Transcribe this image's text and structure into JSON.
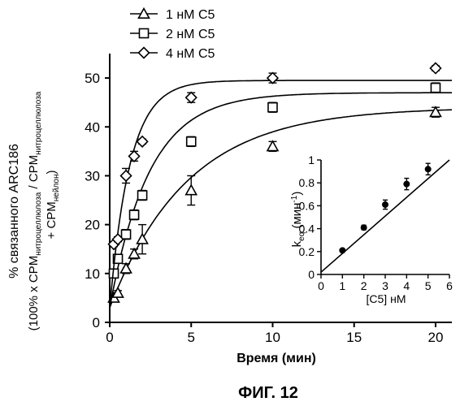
{
  "figure_label": "ФИГ. 12",
  "chart_data": [
    {
      "type": "scatter",
      "xlabel": "Время (мин)",
      "ylabel_line1": "% связанного ARC186",
      "ylabel_line2_parts": [
        "(100% x CPM",
        "нитроцеллюлоза",
        " / CPM",
        "нитроцеллюлоза"
      ],
      "ylabel_line3_parts": [
        "+ CPM",
        "нейлон",
        ")"
      ],
      "xlim": [
        0,
        21
      ],
      "ylim": [
        0,
        55
      ],
      "xticks": [
        0,
        5,
        10,
        15,
        20
      ],
      "yticks": [
        0,
        10,
        20,
        30,
        40,
        50
      ],
      "grid": false,
      "legend_position": "top-left",
      "series": [
        {
          "name": "1 нМ С5",
          "marker": "triangle",
          "x": [
            0.25,
            0.5,
            1.0,
            1.5,
            2.0,
            5.0,
            10.0,
            20.0
          ],
          "y": [
            5,
            6,
            11,
            14,
            17,
            27,
            36,
            43
          ],
          "err": [
            0.5,
            0.5,
            1,
            1,
            3,
            3,
            1,
            1
          ],
          "fit": {
            "plateau": 44,
            "k": 0.21,
            "y0": 3
          }
        },
        {
          "name": "2 нМ С5",
          "marker": "square",
          "x": [
            0.25,
            0.5,
            1.0,
            1.5,
            2.0,
            5.0,
            10.0,
            20.0
          ],
          "y": [
            10,
            13,
            18,
            22,
            26,
            37,
            44,
            48
          ],
          "err": [
            0.5,
            0.5,
            1,
            1,
            1,
            1,
            1,
            1
          ],
          "fit": {
            "plateau": 47,
            "k": 0.41,
            "y0": 3
          }
        },
        {
          "name": "4 нМ С5",
          "marker": "diamond",
          "x": [
            0.25,
            0.5,
            1.0,
            1.5,
            2.0,
            5.0,
            10.0,
            20.0
          ],
          "y": [
            16,
            17,
            30,
            34,
            37,
            46,
            50,
            52
          ],
          "err": [
            0.5,
            0.5,
            1.5,
            1,
            0.5,
            1,
            1,
            0.5
          ],
          "fit": {
            "plateau": 49.5,
            "k": 0.8,
            "y0": 3
          }
        }
      ]
    },
    {
      "type": "scatter",
      "xlabel": "[C5] нМ",
      "ylabel_main": "k",
      "ylabel_sub": "eq",
      "ylabel_unit": "(мин",
      "ylabel_sup": "-1",
      "ylabel_close": ")",
      "xlim": [
        0,
        6
      ],
      "ylim": [
        0,
        1
      ],
      "xticks": [
        0,
        1,
        2,
        3,
        4,
        5,
        6
      ],
      "yticks": [
        "0",
        "0.2",
        "0.4",
        "0.6",
        "0.8",
        "1"
      ],
      "ytick_values": [
        0,
        0.2,
        0.4,
        0.6,
        0.8,
        1
      ],
      "grid": false,
      "series": [
        {
          "marker": "filled-circle",
          "x": [
            1,
            2,
            3,
            4,
            5
          ],
          "y": [
            0.21,
            0.41,
            0.61,
            0.79,
            0.92
          ],
          "err": [
            0.01,
            0.02,
            0.04,
            0.05,
            0.05
          ],
          "fit": {
            "slope": 0.2,
            "intercept": 0.02,
            "x_from": 0,
            "x_to": 6
          }
        }
      ]
    }
  ]
}
